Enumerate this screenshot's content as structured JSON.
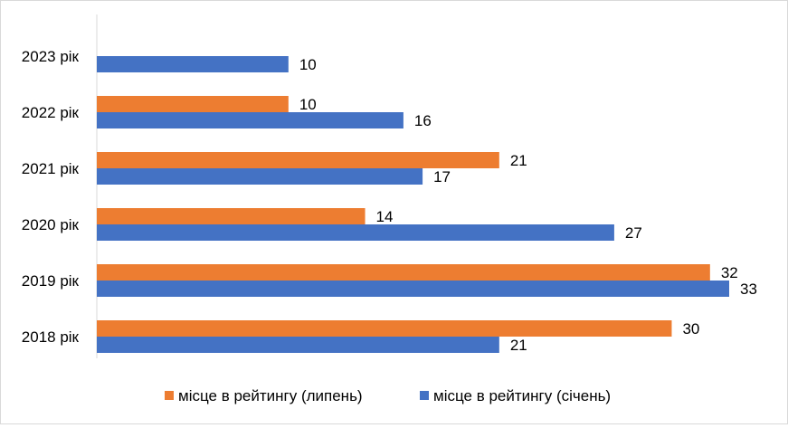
{
  "chart_data": {
    "type": "bar",
    "orientation": "horizontal",
    "categories": [
      "2023 рік",
      "2022 рік",
      "2021 рік",
      "2020 рік",
      "2019 рік",
      "2018 рік"
    ],
    "series": [
      {
        "name": "місце в рейтингу (липень)",
        "color": "#ED7D31",
        "values": [
          null,
          10,
          21,
          14,
          32,
          30
        ]
      },
      {
        "name": "місце в рейтингу (січень)",
        "color": "#4472C4",
        "values": [
          10,
          16,
          17,
          27,
          33,
          21
        ]
      }
    ],
    "xlim": [
      0,
      33
    ],
    "title": "",
    "xlabel": "",
    "ylabel": "",
    "grid": false,
    "data_labels": true,
    "legend_position": "bottom"
  }
}
